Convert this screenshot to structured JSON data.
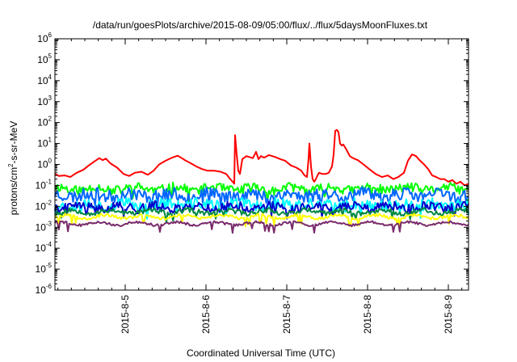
{
  "chart_data": {
    "type": "line",
    "title": "/data/run/goesPlots/archive/2015-08-09/05:00/flux/../flux/5daysMoonFluxes.txt",
    "xlabel": "Coordinated Universal Time (UTC)",
    "ylabel_parts": [
      "protons/cm",
      "2",
      "-s-sr-MeV"
    ],
    "y_scale": "log",
    "ylim": [
      1e-06,
      1000000.0
    ],
    "y_ticks": [
      {
        "base": "10",
        "exp": "-6"
      },
      {
        "base": "10",
        "exp": "-5"
      },
      {
        "base": "10",
        "exp": "-4"
      },
      {
        "base": "10",
        "exp": "-3"
      },
      {
        "base": "10",
        "exp": "-2"
      },
      {
        "base": "10",
        "exp": "-1"
      },
      {
        "base": "10",
        "exp": "0"
      },
      {
        "base": "10",
        "exp": "1"
      },
      {
        "base": "10",
        "exp": "2"
      },
      {
        "base": "10",
        "exp": "3"
      },
      {
        "base": "10",
        "exp": "4"
      },
      {
        "base": "10",
        "exp": "5"
      },
      {
        "base": "10",
        "exp": "6"
      }
    ],
    "x_unit": "day",
    "xlim": [
      4.13,
      9.25
    ],
    "x_ticks": [
      {
        "x": 5,
        "label": "2015-8-5"
      },
      {
        "x": 6,
        "label": "2015-8-6"
      },
      {
        "x": 7,
        "label": "2015-8-7"
      },
      {
        "x": 8,
        "label": "2015-8-8"
      },
      {
        "x": 9,
        "label": "2015-8-9"
      }
    ],
    "grid": false,
    "legend": "none",
    "series": [
      {
        "color": "#ff0000",
        "kind": "smooth",
        "x": [
          4.13,
          4.18,
          4.25,
          4.32,
          4.4,
          4.48,
          4.55,
          4.62,
          4.68,
          4.72,
          4.76,
          4.82,
          4.9,
          4.98,
          5.05,
          5.12,
          5.2,
          5.28,
          5.35,
          5.42,
          5.5,
          5.58,
          5.65,
          5.7,
          5.75,
          5.8,
          5.88,
          5.95,
          6.02,
          6.1,
          6.18,
          6.25,
          6.3,
          6.33,
          6.35,
          6.36,
          6.38,
          6.4,
          6.42,
          6.45,
          6.5,
          6.58,
          6.62,
          6.65,
          6.68,
          6.72,
          6.78,
          6.85,
          6.92,
          6.98,
          7.05,
          7.12,
          7.18,
          7.22,
          7.25,
          7.27,
          7.28,
          7.3,
          7.32,
          7.34,
          7.36,
          7.38,
          7.4,
          7.44,
          7.48,
          7.52,
          7.56,
          7.58,
          7.6,
          7.62,
          7.64,
          7.66,
          7.68,
          7.7,
          7.74,
          7.78,
          7.82,
          7.88,
          7.95,
          8.02,
          8.1,
          8.18,
          8.25,
          8.32,
          8.38,
          8.45,
          8.5,
          8.55,
          8.6,
          8.65,
          8.7,
          8.75,
          8.8,
          8.85,
          8.9,
          8.95,
          9.0,
          9.05,
          9.1,
          9.15,
          9.2,
          9.25
        ],
        "values": [
          0.35,
          0.28,
          0.3,
          0.25,
          0.4,
          0.55,
          0.9,
          1.4,
          2.0,
          1.6,
          1.9,
          1.1,
          0.7,
          0.35,
          0.28,
          0.4,
          0.45,
          0.32,
          0.5,
          1.0,
          1.5,
          2.1,
          2.6,
          2.0,
          1.5,
          1.2,
          0.8,
          0.6,
          0.5,
          0.5,
          0.45,
          0.35,
          0.2,
          0.15,
          0.12,
          25,
          3,
          0.5,
          0.35,
          1.8,
          2.5,
          2.0,
          4.0,
          1.8,
          2.5,
          2.1,
          2.8,
          2.3,
          1.8,
          1.5,
          0.9,
          0.7,
          0.5,
          0.3,
          0.25,
          2.0,
          10,
          0.8,
          0.2,
          0.15,
          0.2,
          0.3,
          0.4,
          0.35,
          0.35,
          0.4,
          0.8,
          3.0,
          40,
          45,
          35,
          10,
          8,
          9,
          5,
          2.5,
          2.0,
          1.6,
          1.0,
          0.6,
          0.35,
          0.25,
          0.3,
          0.2,
          0.25,
          0.4,
          1.5,
          3.0,
          2.5,
          1.5,
          1.0,
          0.6,
          0.3,
          0.25,
          0.2,
          0.2,
          0.15,
          0.18,
          0.12,
          0.15,
          0.1,
          0.12
        ]
      },
      {
        "color": "#00ff00",
        "kind": "noisy",
        "seed": 11,
        "level": 0.07,
        "amp": 0.22
      },
      {
        "color": "#0066ff",
        "kind": "noisy",
        "seed": 23,
        "level": 0.035,
        "amp": 0.3
      },
      {
        "color": "#00ffff",
        "kind": "noisy",
        "seed": 37,
        "level": 0.012,
        "amp": 0.28
      },
      {
        "color": "#0000cc",
        "kind": "noisy",
        "seed": 41,
        "level": 0.009,
        "amp": 0.22
      },
      {
        "color": "#008844",
        "kind": "noisy",
        "seed": 53,
        "level": 0.0055,
        "amp": 0.12
      },
      {
        "color": "#ffff00",
        "kind": "noisy",
        "seed": 67,
        "level": 0.0032,
        "amp": 0.07
      },
      {
        "color": "#7a2b6b",
        "kind": "noisy",
        "seed": 79,
        "level": 0.0015,
        "amp": 0.06
      }
    ]
  }
}
